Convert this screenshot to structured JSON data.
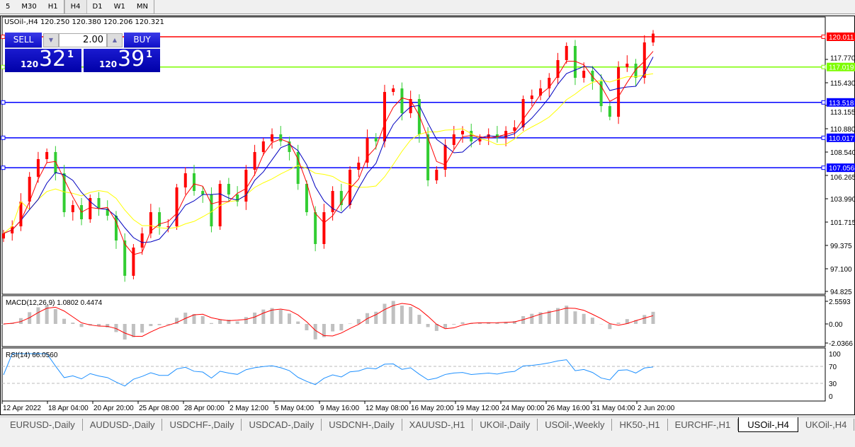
{
  "timeframes": [
    "5",
    "M30",
    "H1",
    "H4",
    "D1",
    "W1",
    "MN"
  ],
  "active_timeframe": "H4",
  "chart": {
    "symbol_line": "USOil-,H4  120.250 120.380 120.206 120.321"
  },
  "trade": {
    "sell_label": "SELL",
    "buy_label": "BUY",
    "volume": "2.00",
    "sell": {
      "small": "120",
      "big": "32",
      "pip": "1"
    },
    "buy": {
      "small": "120",
      "big": "39",
      "pip": "1"
    }
  },
  "price_axis": [
    "117.770",
    "115.430",
    "113.155",
    "110.880",
    "108.540",
    "106.265",
    "103.990",
    "101.715",
    "99.375",
    "97.100",
    "94.825"
  ],
  "hlines": [
    {
      "price": 120.011,
      "label": "120.011",
      "color": "#ff0000"
    },
    {
      "price": 117.019,
      "label": "117.019",
      "color": "#7cfc00"
    },
    {
      "price": 113.518,
      "label": "113.518",
      "color": "#0000ff"
    },
    {
      "price": 110.017,
      "label": "110.017",
      "color": "#0000ff"
    },
    {
      "price": 107.056,
      "label": "107.056",
      "color": "#0000ff"
    }
  ],
  "macd": {
    "label": "MACD(12,26,9) 1.0802 0.4474",
    "axis": [
      "2.5593",
      "0.00",
      "-2.0366"
    ]
  },
  "rsi": {
    "label": "RSI(14) 66.0560",
    "axis": [
      "100",
      "70",
      "30",
      "0"
    ]
  },
  "time_axis": [
    "12 Apr 2022",
    "18 Apr 04:00",
    "20 Apr 20:00",
    "25 Apr 08:00",
    "28 Apr 00:00",
    "2 May 12:00",
    "5 May 04:00",
    "9 May 16:00",
    "12 May 08:00",
    "16 May 20:00",
    "19 May 12:00",
    "24 May 00:00",
    "26 May 16:00",
    "31 May 04:00",
    "2 Jun 20:00"
  ],
  "tabs": [
    "EURUSD-,Daily",
    "AUDUSD-,Daily",
    "USDCHF-,Daily",
    "USDCAD-,Daily",
    "USDCNH-,Daily",
    "XAUUSD-,H1",
    "UKOil-,Daily",
    "USOil-,Weekly",
    "HK50-,H1",
    "EURCHF-,H1",
    "USOil-,H4",
    "UKOil-,H4"
  ],
  "active_tab": "USOil-,H4",
  "colors": {
    "bull": "#ff0000",
    "bear": "#32cd32",
    "ma_fast": "#ff0000",
    "ma_mid": "#0000c0",
    "ma_slow": "#ffff00",
    "macd_hist": "#c0c0c0",
    "rsi": "#1e90ff"
  },
  "chart_data": {
    "type": "candlestick",
    "closes": [
      100.56,
      101.26,
      103.71,
      106.16,
      107.91,
      108.61,
      106.51,
      102.66,
      103.36,
      101.96,
      104.06,
      103.01,
      102.31,
      99.86,
      96.37,
      99.16,
      100.56,
      102.66,
      101.26,
      101.26,
      105.11,
      106.51,
      104.76,
      104.41,
      101.26,
      105.46,
      104.41,
      103.71,
      106.86,
      108.61,
      109.66,
      110.36,
      109.66,
      108.61,
      105.46,
      102.66,
      99.51,
      102.66,
      104.76,
      103.36,
      106.86,
      107.56,
      110.01,
      109.66,
      114.55,
      114.9,
      112.45,
      113.85,
      110.36,
      105.81,
      106.86,
      109.31,
      110.36,
      110.7,
      109.66,
      110.01,
      110.36,
      110.01,
      110.7,
      111.05,
      113.85,
      114.2,
      114.9,
      115.95,
      117.7,
      119.1,
      115.95,
      116.65,
      115.6,
      113.15,
      112.1,
      117.0,
      117.35,
      115.95,
      119.45,
      120.32
    ]
  }
}
